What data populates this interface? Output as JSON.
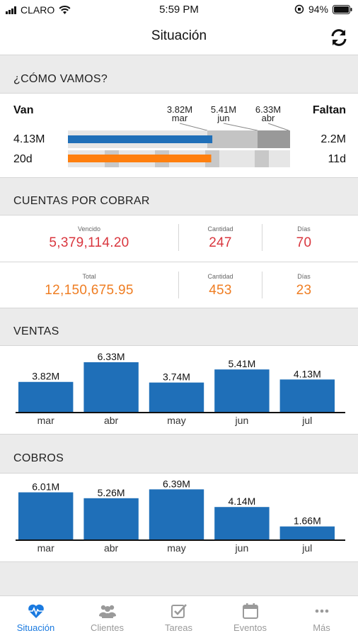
{
  "status_bar": {
    "carrier": "CLARO",
    "time": "5:59 PM",
    "battery": "94%"
  },
  "header": {
    "title": "Situación"
  },
  "como_vamos": {
    "heading": "¿CÓMO VAMOS?",
    "van_label": "Van",
    "faltan_label": "Faltan",
    "markers": [
      {
        "value": "3.82M",
        "month": "mar"
      },
      {
        "value": "5.41M",
        "month": "jun"
      },
      {
        "value": "6.33M",
        "month": "abr"
      }
    ],
    "sales_row": {
      "van": "4.13M",
      "faltan": "2.2M",
      "progress": 0.65
    },
    "days_row": {
      "van": "20d",
      "faltan": "11d",
      "progress": 0.645
    }
  },
  "cuentas": {
    "heading": "CUENTAS POR COBRAR",
    "rows": [
      {
        "label1": "Vencido",
        "value1": "5,379,114.20",
        "label2": "Cantidad",
        "value2": "247",
        "label3": "Días",
        "value3": "70",
        "color": "#d9363e"
      },
      {
        "label1": "Total",
        "value1": "12,150,675.95",
        "label2": "Cantidad",
        "value2": "453",
        "label3": "Días",
        "value3": "23",
        "color": "#ef7d22"
      }
    ]
  },
  "chart_data": [
    {
      "type": "bar",
      "title": "VENTAS",
      "categories": [
        "mar",
        "abr",
        "may",
        "jun",
        "jul"
      ],
      "values": [
        3.82,
        6.33,
        3.74,
        5.41,
        4.13
      ],
      "labels": [
        "3.82M",
        "6.33M",
        "3.74M",
        "5.41M",
        "4.13M"
      ],
      "ylim": [
        0,
        6.6
      ],
      "color": "#1f6fb8"
    },
    {
      "type": "bar",
      "title": "COBROS",
      "categories": [
        "mar",
        "abr",
        "may",
        "jun",
        "jul"
      ],
      "values": [
        6.01,
        5.26,
        6.39,
        4.14,
        1.66
      ],
      "labels": [
        "6.01M",
        "5.26M",
        "6.39M",
        "4.14M",
        "1.66M"
      ],
      "ylim": [
        0,
        6.6
      ],
      "color": "#1f6fb8"
    }
  ],
  "tabs": [
    {
      "label": "Situación",
      "icon": "heart-pulse-icon",
      "active": true
    },
    {
      "label": "Clientes",
      "icon": "users-icon",
      "active": false
    },
    {
      "label": "Tareas",
      "icon": "checkbox-icon",
      "active": false
    },
    {
      "label": "Eventos",
      "icon": "calendar-icon",
      "active": false
    },
    {
      "label": "Más",
      "icon": "more-dots-icon",
      "active": false
    }
  ],
  "colors": {
    "accent": "#1a7ae0",
    "bar_blue": "#1f6fb8",
    "orange": "#ff7f0e",
    "red": "#d9363e"
  }
}
